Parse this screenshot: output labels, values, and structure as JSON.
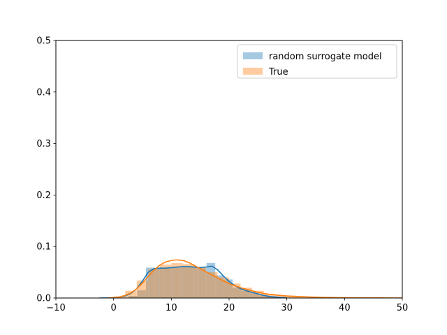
{
  "chart_data": {
    "type": "area",
    "title": "",
    "xlabel": "",
    "ylabel": "",
    "xlim": [
      -10,
      50
    ],
    "ylim": [
      0,
      0.5
    ],
    "xticks": [
      -10,
      0,
      10,
      20,
      30,
      40,
      50
    ],
    "yticks": [
      0.0,
      0.1,
      0.2,
      0.3,
      0.4,
      0.5
    ],
    "xtick_labels": [
      "−10",
      "0",
      "10",
      "20",
      "30",
      "40",
      "50"
    ],
    "ytick_labels": [
      "0.0",
      "0.1",
      "0.2",
      "0.3",
      "0.4",
      "0.5"
    ],
    "grid": false,
    "legend_position": "top-right",
    "series": [
      {
        "name": "random surrogate model",
        "color": "#1f77b4",
        "hist_color": "#1f77b4",
        "hist_alpha": 0.4,
        "histogram": {
          "bin_edges": [
            2.6,
            4.1,
            5.6,
            7.1,
            8.6,
            10.1,
            11.6,
            13.1,
            14.6,
            16.1,
            17.6,
            19.1,
            20.6,
            22.1,
            23.6,
            25.1,
            26.6,
            28.1,
            29.6
          ],
          "heights": [
            0.004,
            0.015,
            0.059,
            0.058,
            0.058,
            0.059,
            0.06,
            0.06,
            0.058,
            0.068,
            0.044,
            0.036,
            0.02,
            0.014,
            0.01,
            0.005,
            0.003,
            0.001
          ]
        },
        "kde": {
          "x": [
            -2.5,
            -1,
            0,
            1,
            2,
            3,
            4,
            5,
            6,
            7,
            8,
            9,
            10,
            11,
            12,
            13,
            14,
            15,
            16,
            17,
            18,
            19,
            20,
            21,
            22,
            23,
            24,
            25,
            26,
            27,
            28,
            29,
            30
          ],
          "y": [
            0,
            0.0003,
            0.0008,
            0.002,
            0.004,
            0.009,
            0.018,
            0.033,
            0.05,
            0.057,
            0.058,
            0.058,
            0.059,
            0.06,
            0.061,
            0.061,
            0.06,
            0.059,
            0.06,
            0.062,
            0.055,
            0.043,
            0.032,
            0.024,
            0.018,
            0.014,
            0.011,
            0.008,
            0.005,
            0.003,
            0.002,
            0.001,
            0.0005
          ]
        }
      },
      {
        "name": "True",
        "color": "#ff7f0e",
        "hist_color": "#ff7f0e",
        "hist_alpha": 0.4,
        "histogram": {
          "bin_edges": [
            0,
            2,
            4,
            6,
            8,
            10,
            12,
            14,
            16,
            18,
            20,
            22,
            24,
            26,
            28,
            30,
            32,
            34,
            36,
            38,
            40,
            42,
            44,
            46,
            48,
            50
          ],
          "heights": [
            0.003,
            0.014,
            0.034,
            0.056,
            0.065,
            0.068,
            0.066,
            0.06,
            0.05,
            0.04,
            0.028,
            0.02,
            0.014,
            0.008,
            0.005,
            0.003,
            0.002,
            0.0015,
            0.001,
            0.0008,
            0.0005,
            0.0003,
            0.0002,
            0.0001,
            0.0001
          ]
        },
        "kde": {
          "x": [
            -1,
            0,
            1,
            2,
            3,
            4,
            5,
            6,
            7,
            8,
            9,
            10,
            11,
            12,
            13,
            14,
            15,
            16,
            17,
            18,
            19,
            20,
            21,
            22,
            23,
            24,
            25,
            26,
            27,
            28,
            29,
            30,
            32,
            34,
            36,
            38,
            40,
            42,
            44,
            46,
            48,
            50
          ],
          "y": [
            0,
            0.0008,
            0.002,
            0.005,
            0.01,
            0.018,
            0.029,
            0.042,
            0.054,
            0.064,
            0.07,
            0.073,
            0.074,
            0.073,
            0.069,
            0.063,
            0.057,
            0.051,
            0.045,
            0.039,
            0.033,
            0.028,
            0.024,
            0.02,
            0.017,
            0.014,
            0.011,
            0.009,
            0.007,
            0.006,
            0.005,
            0.004,
            0.003,
            0.002,
            0.0013,
            0.0009,
            0.0006,
            0.0004,
            0.0003,
            0.0002,
            0.0001,
            5e-05
          ]
        }
      }
    ]
  }
}
